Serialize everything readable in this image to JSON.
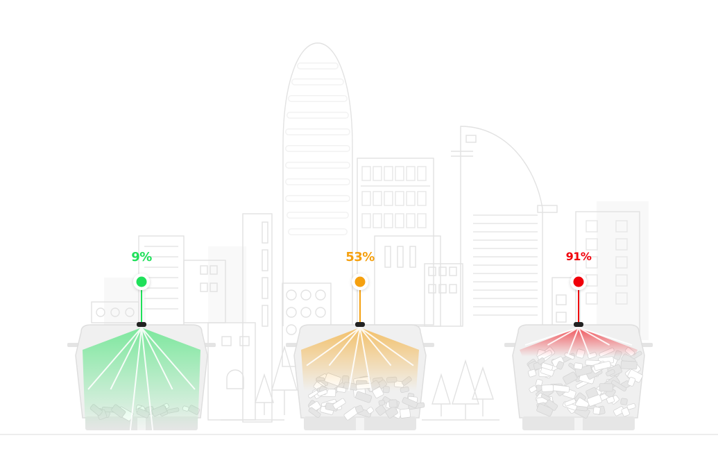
{
  "bins": [
    {
      "id": "low",
      "label": "9%",
      "fill_level": 0.09,
      "color": "#1fe05a"
    },
    {
      "id": "medium",
      "label": "53%",
      "fill_level": 0.53,
      "color": "#f5a00f"
    },
    {
      "id": "high",
      "label": "91%",
      "fill_level": 0.91,
      "color": "#f0000a"
    }
  ],
  "colors": {
    "outline": "#dddddd",
    "bin": "#ececec",
    "ground": "#e2e2e2"
  }
}
